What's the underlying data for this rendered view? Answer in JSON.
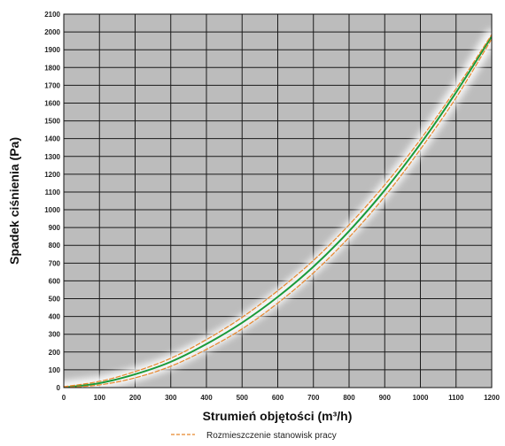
{
  "chart_data": {
    "type": "line",
    "xlabel": "Strumień objętości (m³/h)",
    "ylabel": "Spadek ciśnienia (Pa)",
    "xlim": [
      0,
      1200
    ],
    "ylim": [
      0,
      2100
    ],
    "xticks": [
      0,
      100,
      200,
      300,
      400,
      500,
      600,
      700,
      800,
      900,
      1000,
      1100,
      1200
    ],
    "yticks": [
      0,
      100,
      200,
      300,
      400,
      500,
      600,
      700,
      800,
      900,
      1000,
      1100,
      1200,
      1300,
      1400,
      1500,
      1600,
      1700,
      1800,
      1900,
      2000,
      2100
    ],
    "grid": true,
    "legend_position": "bottom",
    "series": [
      {
        "key": "main",
        "color": "#1a9a3a",
        "style": "solid",
        "x": [
          0,
          100,
          200,
          300,
          400,
          500,
          600,
          700,
          800,
          900,
          1000,
          1100,
          1200
        ],
        "y": [
          0,
          25,
          75,
          145,
          245,
          365,
          510,
          680,
          880,
          1110,
          1370,
          1660,
          1975
        ]
      },
      {
        "key": "upper_tolerance",
        "color": "#e8862a",
        "style": "dashed",
        "x": [
          0,
          100,
          200,
          300,
          400,
          500,
          600,
          700,
          800,
          900,
          1000,
          1100,
          1200
        ],
        "y": [
          5,
          35,
          90,
          165,
          270,
          395,
          545,
          715,
          915,
          1140,
          1395,
          1680,
          1985
        ]
      },
      {
        "key": "lower_tolerance",
        "name": "Rozmieszczenie stanowisk pracy",
        "color": "#e8862a",
        "style": "dashed",
        "x": [
          0,
          100,
          200,
          300,
          400,
          500,
          600,
          700,
          800,
          900,
          1000,
          1100,
          1200
        ],
        "y": [
          0,
          15,
          55,
          120,
          215,
          330,
          475,
          645,
          845,
          1075,
          1340,
          1630,
          1960
        ]
      }
    ]
  },
  "colors": {
    "plot_background": "#bcbcbc",
    "grid_line": "#1a1a1a",
    "halo": "#ffffff"
  }
}
